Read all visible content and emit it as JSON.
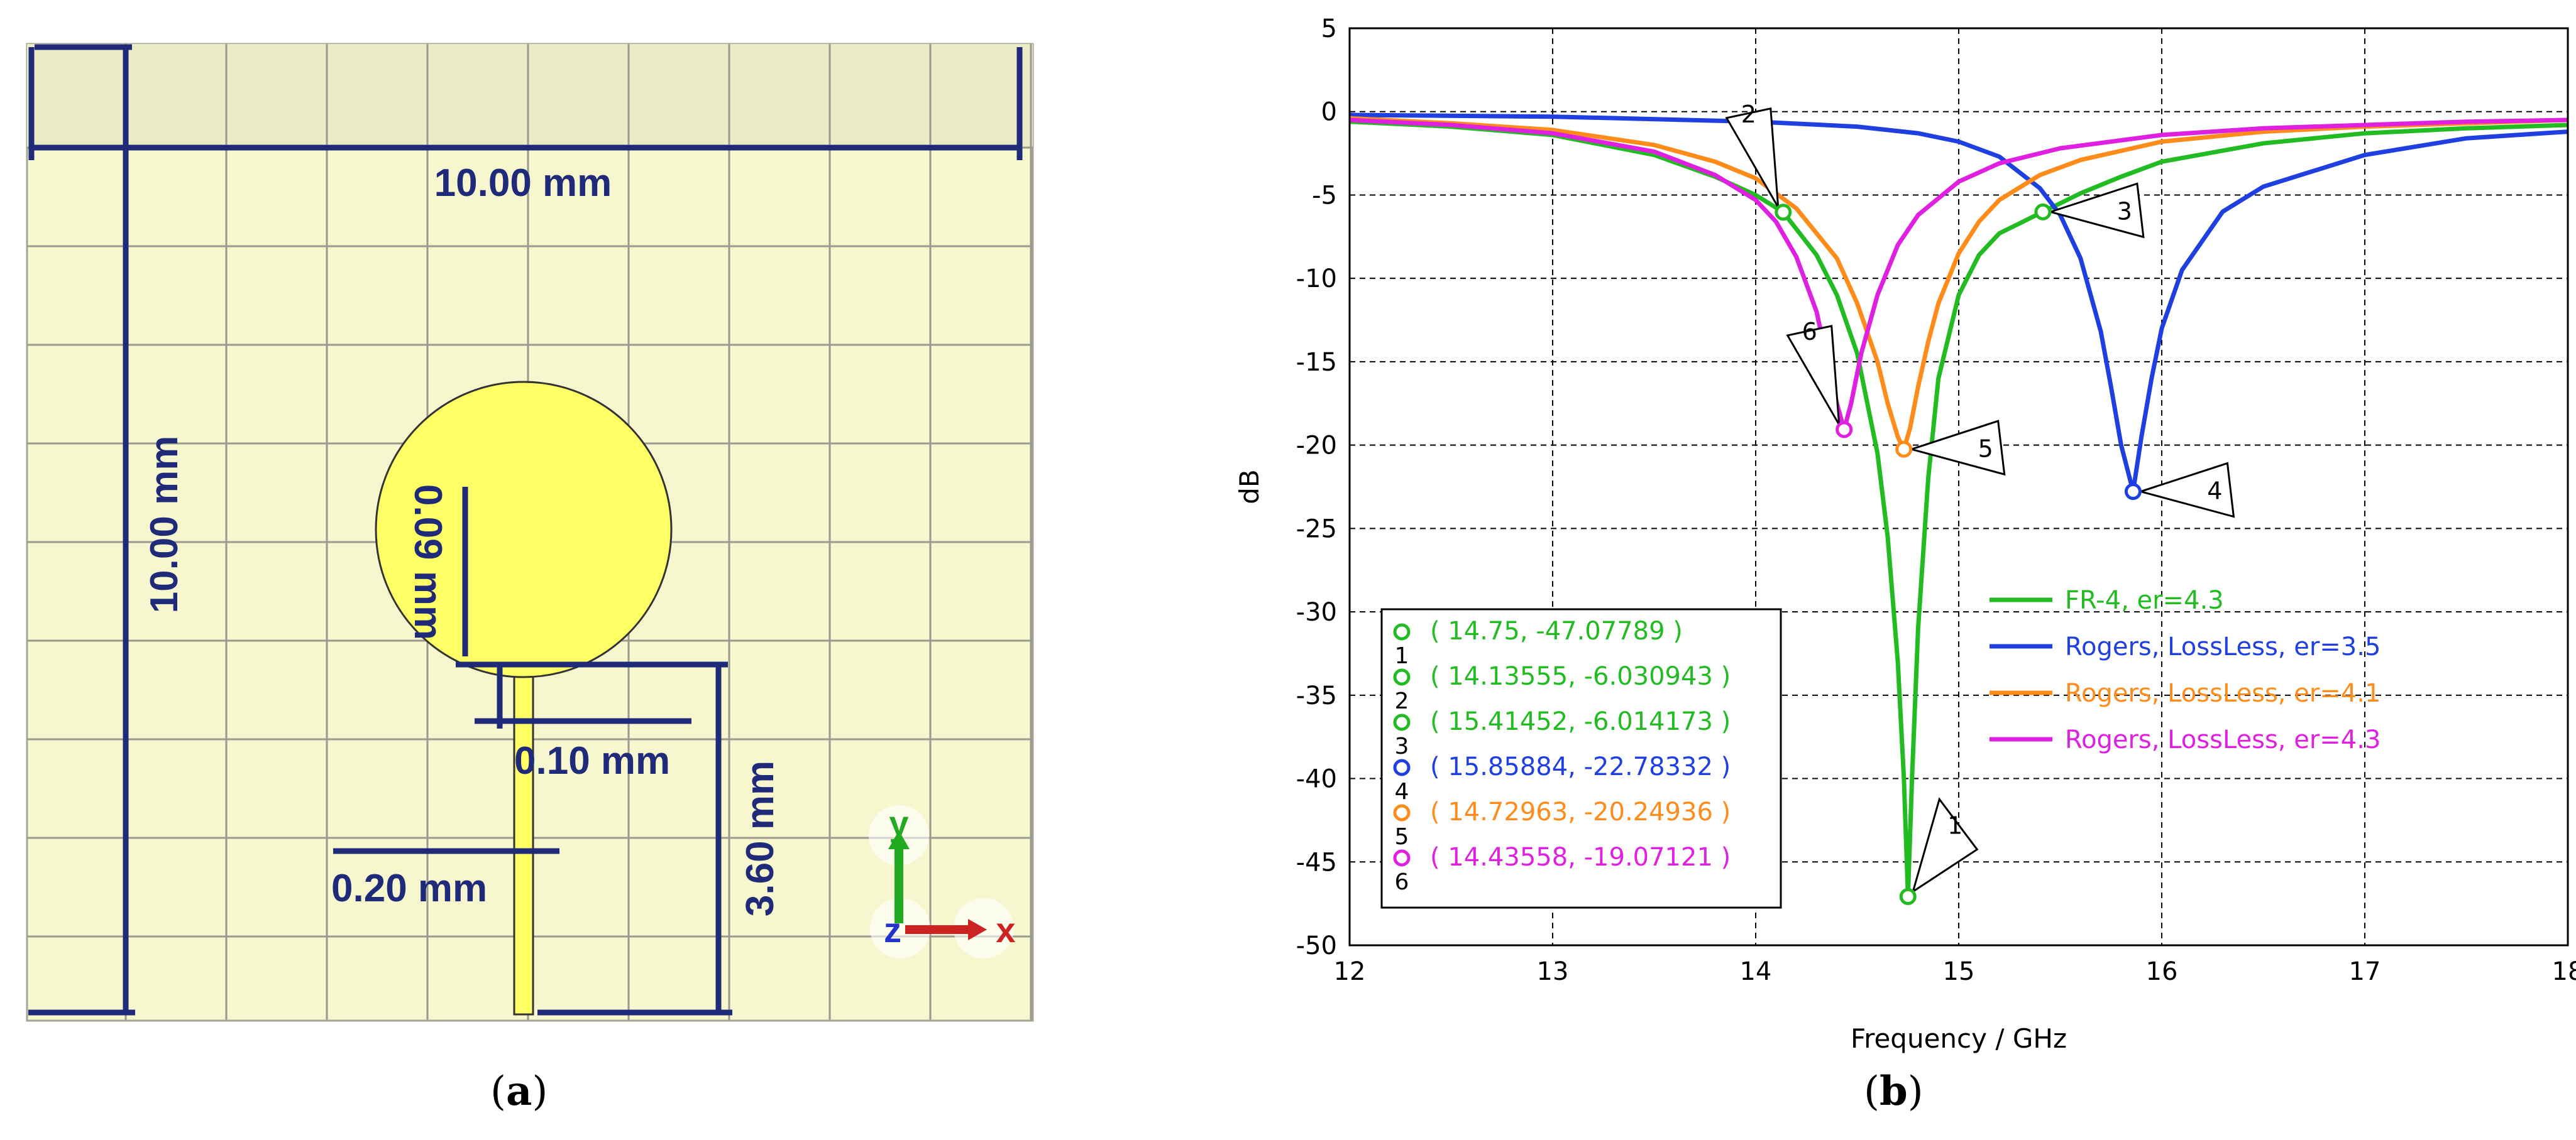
{
  "panel_a": {
    "caption_open": "(",
    "caption_letter": "a",
    "caption_close": ")",
    "dimensions": {
      "width_top": "10.00 mm",
      "height_left": "10.00 mm",
      "circle_offset": "0.09 mm",
      "gap": "0.10 mm",
      "feed_width": "0.20 mm",
      "feed_length": "3.60 mm"
    },
    "axes": {
      "y_label": "y",
      "z_label": "z",
      "x_label": "x"
    },
    "colors": {
      "background": "#f7f7cf",
      "grid": "#9a9a8f",
      "patch": "#ffff66",
      "dimension_line": "#1f2a78",
      "y_axis": "#22aa22",
      "x_axis": "#cc2222",
      "z_axis": "#2233cc"
    }
  },
  "panel_b": {
    "caption_open": "(",
    "caption_letter": "b",
    "caption_close": ")",
    "chart_data": {
      "type": "line",
      "xlabel": "Frequency / GHz",
      "ylabel": "dB",
      "xlim": [
        12,
        18
      ],
      "ylim": [
        -50,
        5
      ],
      "xticks": [
        "12",
        "13",
        "14",
        "15",
        "16",
        "17",
        "18"
      ],
      "yticks": [
        "5",
        "0",
        "-5",
        "-10",
        "-15",
        "-20",
        "-25",
        "-30",
        "-35",
        "-40",
        "-45",
        "-50"
      ],
      "grid": true,
      "legend_position": "lower-right",
      "series": [
        {
          "name": "FR-4, er=4.3",
          "color": "#22bb22",
          "x": [
            12,
            12.5,
            13,
            13.5,
            13.8,
            14.0,
            14.1356,
            14.3,
            14.4,
            14.5,
            14.6,
            14.65,
            14.7,
            14.73,
            14.75,
            14.77,
            14.8,
            14.85,
            14.9,
            15.0,
            15.1,
            15.2,
            15.3,
            15.4145,
            15.6,
            15.8,
            16.0,
            16.5,
            17.0,
            17.5,
            18.0
          ],
          "y": [
            -0.6,
            -0.9,
            -1.4,
            -2.6,
            -3.9,
            -5.0,
            -6.03,
            -8.6,
            -11.0,
            -14.5,
            -20.5,
            -25.5,
            -33.0,
            -40.0,
            -47.08,
            -40.0,
            -31.0,
            -22.0,
            -16.0,
            -11.0,
            -8.6,
            -7.3,
            -6.7,
            -6.01,
            -4.9,
            -3.9,
            -3.0,
            -1.9,
            -1.3,
            -1.0,
            -0.8
          ]
        },
        {
          "name": "Rogers, LossLess, er=3.5",
          "color": "#1f3fe0",
          "x": [
            12,
            13,
            14,
            14.5,
            14.8,
            15.0,
            15.2,
            15.4,
            15.5,
            15.6,
            15.7,
            15.75,
            15.8,
            15.85884,
            15.9,
            15.95,
            16.0,
            16.1,
            16.3,
            16.5,
            17.0,
            17.5,
            18.0
          ],
          "y": [
            -0.2,
            -0.3,
            -0.6,
            -0.9,
            -1.3,
            -1.8,
            -2.7,
            -4.6,
            -6.2,
            -8.8,
            -13.2,
            -16.5,
            -20.0,
            -22.78,
            -19.5,
            -16.0,
            -13.0,
            -9.5,
            -6.0,
            -4.5,
            -2.6,
            -1.6,
            -1.2
          ]
        },
        {
          "name": "Rogers, LossLess, er=4.1",
          "color": "#ff8c1a",
          "x": [
            12,
            12.5,
            13,
            13.5,
            13.8,
            14.0,
            14.2,
            14.4,
            14.5,
            14.6,
            14.65,
            14.7,
            14.72963,
            14.76,
            14.8,
            14.85,
            14.9,
            15.0,
            15.1,
            15.2,
            15.4,
            15.6,
            16.0,
            16.5,
            17.0,
            17.5,
            18.0
          ],
          "y": [
            -0.4,
            -0.7,
            -1.1,
            -2.0,
            -3.0,
            -4.0,
            -5.8,
            -8.8,
            -11.5,
            -15.0,
            -17.5,
            -19.5,
            -20.25,
            -19.0,
            -16.5,
            -13.8,
            -11.5,
            -8.5,
            -6.6,
            -5.3,
            -3.8,
            -2.9,
            -1.8,
            -1.2,
            -0.9,
            -0.7,
            -0.5
          ]
        },
        {
          "name": "Rogers, LossLess, er=4.3",
          "color": "#e020e0",
          "x": [
            12,
            12.5,
            13,
            13.5,
            13.8,
            14.0,
            14.1,
            14.2,
            14.3,
            14.35,
            14.4,
            14.43558,
            14.47,
            14.52,
            14.6,
            14.7,
            14.8,
            15.0,
            15.2,
            15.5,
            16.0,
            16.5,
            17.0,
            17.5,
            18.0
          ],
          "y": [
            -0.5,
            -0.8,
            -1.3,
            -2.4,
            -3.8,
            -5.3,
            -6.6,
            -8.7,
            -12.0,
            -14.8,
            -17.5,
            -19.07,
            -17.5,
            -14.5,
            -11.0,
            -8.0,
            -6.2,
            -4.2,
            -3.1,
            -2.2,
            -1.4,
            -1.0,
            -0.8,
            -0.6,
            -0.5
          ]
        }
      ],
      "markers": [
        {
          "id": "1",
          "x": 14.75,
          "y": -47.07789,
          "label": "( 14.75, -47.07789 )",
          "color": "#22bb22",
          "flag_dir": "up-right"
        },
        {
          "id": "2",
          "x": 14.13555,
          "y": -6.030943,
          "label": "( 14.13555, -6.030943 )",
          "color": "#22bb22",
          "flag_dir": "up-left"
        },
        {
          "id": "3",
          "x": 15.41452,
          "y": -6.014173,
          "label": "( 15.41452, -6.014173 )",
          "color": "#22bb22",
          "flag_dir": "right"
        },
        {
          "id": "4",
          "x": 15.85884,
          "y": -22.78332,
          "label": "( 15.85884, -22.78332 )",
          "color": "#1f3fe0",
          "flag_dir": "right"
        },
        {
          "id": "5",
          "x": 14.72963,
          "y": -20.24936,
          "label": "( 14.72963, -20.24936 )",
          "color": "#ff8c1a",
          "flag_dir": "right"
        },
        {
          "id": "6",
          "x": 14.43558,
          "y": -19.07121,
          "label": "( 14.43558, -19.07121 )",
          "color": "#e020e0",
          "flag_dir": "up-left"
        }
      ]
    }
  }
}
